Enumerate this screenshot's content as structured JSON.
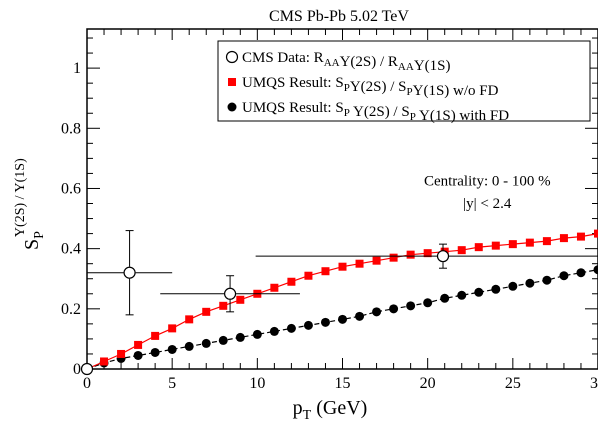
{
  "chart_data": {
    "type": "scatter",
    "title": "CMS Pb-Pb 5.02 TeV",
    "xlabel": {
      "main": "p",
      "sub": "T",
      "unit": " (GeV)"
    },
    "ylabel": {
      "main": "S",
      "sub": "P",
      "sup": "Y(2S) / Y(1S)"
    },
    "xlim": [
      0,
      30
    ],
    "ylim": [
      0,
      1.13
    ],
    "xticks": [
      0,
      5,
      10,
      15,
      20,
      25,
      30
    ],
    "yticks": [
      0,
      0.2,
      0.4,
      0.6,
      0.8,
      1
    ],
    "ytick_labels": [
      "0",
      "0.2",
      "0.4",
      "0.6",
      "0.8",
      "1"
    ],
    "grid": false,
    "legend_position": "top-right",
    "legend": [
      {
        "series": "cms",
        "parts": [
          {
            "t": "CMS Data: R"
          },
          {
            "t": "AA",
            "sub": true
          },
          {
            "t": "Y(2S) / R"
          },
          {
            "t": "AA",
            "sub": true
          },
          {
            "t": "Y(1S)"
          }
        ]
      },
      {
        "series": "wofd",
        "parts": [
          {
            "t": "UMQS Result: S"
          },
          {
            "t": "P",
            "sub": true
          },
          {
            "t": "Y(2S) / S"
          },
          {
            "t": "P",
            "sub": true
          },
          {
            "t": "Y(1S) w/o FD"
          }
        ]
      },
      {
        "series": "wfd",
        "parts": [
          {
            "t": "UMQS Result: S"
          },
          {
            "t": "P",
            "sub": true
          },
          {
            "t": " Y(2S) / S"
          },
          {
            "t": "P",
            "sub": true
          },
          {
            "t": " Y(1S) with FD"
          }
        ]
      }
    ],
    "annotations": [
      {
        "text": "Centrality: 0 - 100 %",
        "x": 23.5,
        "y": 0.61
      },
      {
        "text": "|y| < 2.4",
        "x": 23.5,
        "y": 0.535
      }
    ],
    "series": [
      {
        "key": "cms",
        "marker": "open-circle",
        "color": "#000000",
        "points": [
          {
            "x": 0.0,
            "y": 0.0,
            "xerr": [
              0.0,
              0.0
            ],
            "yerr": [
              0.0,
              0.0
            ]
          },
          {
            "x": 2.5,
            "y": 0.32,
            "xerr": [
              2.5,
              2.5
            ],
            "yerr": [
              0.14,
              0.14
            ]
          },
          {
            "x": 8.4,
            "y": 0.25,
            "xerr": [
              4.1,
              4.1
            ],
            "yerr": [
              0.06,
              0.06
            ]
          },
          {
            "x": 20.9,
            "y": 0.375,
            "xerr": [
              11.0,
              9.1
            ],
            "yerr": [
              0.04,
              0.04
            ]
          }
        ]
      },
      {
        "key": "wofd",
        "marker": "square",
        "color": "#ff0000",
        "line": "solid",
        "x": [
          1,
          2,
          3,
          4,
          5,
          6,
          7,
          8,
          9,
          10,
          11,
          12,
          13,
          14,
          15,
          16,
          17,
          18,
          19,
          20,
          21,
          22,
          23,
          24,
          25,
          26,
          27,
          28,
          29,
          30
        ],
        "y": [
          0.025,
          0.05,
          0.08,
          0.11,
          0.135,
          0.165,
          0.19,
          0.21,
          0.23,
          0.25,
          0.27,
          0.29,
          0.31,
          0.325,
          0.34,
          0.35,
          0.36,
          0.37,
          0.38,
          0.385,
          0.39,
          0.395,
          0.405,
          0.41,
          0.415,
          0.42,
          0.425,
          0.435,
          0.44,
          0.45
        ]
      },
      {
        "key": "wfd",
        "marker": "filled-circle",
        "color": "#000000",
        "line": "dashed",
        "x": [
          1,
          2,
          3,
          4,
          5,
          6,
          7,
          8,
          9,
          10,
          11,
          12,
          13,
          14,
          15,
          16,
          17,
          18,
          19,
          20,
          21,
          22,
          23,
          24,
          25,
          26,
          27,
          28,
          29,
          30
        ],
        "y": [
          0.02,
          0.035,
          0.045,
          0.055,
          0.065,
          0.075,
          0.085,
          0.095,
          0.105,
          0.115,
          0.125,
          0.135,
          0.145,
          0.155,
          0.165,
          0.175,
          0.19,
          0.2,
          0.21,
          0.22,
          0.235,
          0.245,
          0.255,
          0.265,
          0.275,
          0.285,
          0.295,
          0.31,
          0.32,
          0.33
        ]
      }
    ]
  }
}
